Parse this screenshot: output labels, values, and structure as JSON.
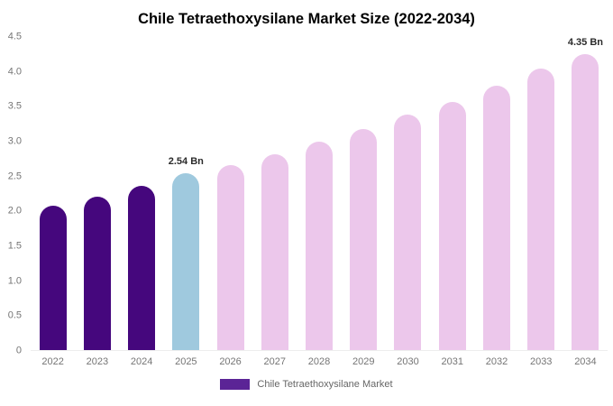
{
  "chart_data": {
    "type": "bar",
    "title": "Chile Tetraethoxysilane Market Size (2022-2034)",
    "unit": "Bn",
    "categories": [
      "2022",
      "2023",
      "2024",
      "2025",
      "2026",
      "2027",
      "2028",
      "2029",
      "2030",
      "2031",
      "2032",
      "2033",
      "2034"
    ],
    "values": [
      2.08,
      2.2,
      2.36,
      2.54,
      2.66,
      2.82,
      3.0,
      3.18,
      3.38,
      3.57,
      3.8,
      4.05,
      4.35
    ],
    "bar_colors": [
      "#45077d",
      "#45077d",
      "#45077d",
      "#9fc9de",
      "#ecc7eb",
      "#ecc7eb",
      "#ecc7eb",
      "#ecc7eb",
      "#ecc7eb",
      "#ecc7eb",
      "#ecc7eb",
      "#ecc7eb",
      "#ecc7eb"
    ],
    "ylim": [
      0,
      4.5
    ],
    "yticks": [
      "0",
      "0.5",
      "1.0",
      "1.5",
      "2.0",
      "2.5",
      "3.0",
      "3.5",
      "4.0",
      "4.5"
    ],
    "grid": false,
    "annotations": [
      {
        "category": "2025",
        "text": "2.54 Bn"
      },
      {
        "category": "2034",
        "text": "4.35 Bn"
      }
    ],
    "legend": "Chile Tetraethoxysilane Market",
    "legend_position": "bottom",
    "colors": {
      "historical": "#45077d",
      "highlight_current_year": "#9fc9de",
      "forecast": "#ecc7eb",
      "legend_swatch": "#5b2496"
    }
  }
}
